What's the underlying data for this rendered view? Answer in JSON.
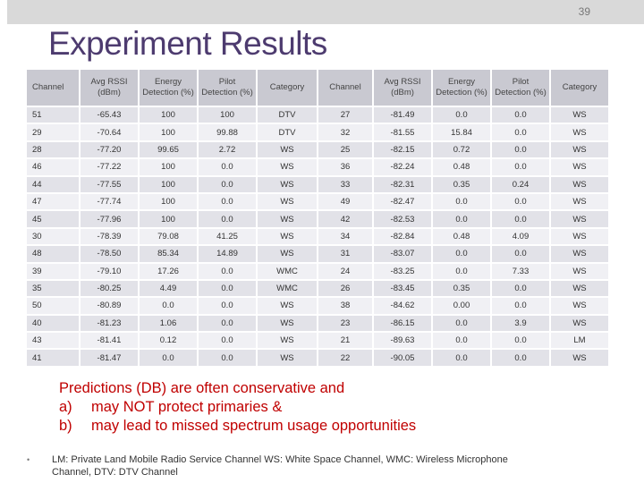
{
  "slide": {
    "page_number": "39",
    "title": "Experiment Results"
  },
  "table": {
    "headers": [
      "Channel",
      "Avg RSSI (dBm)",
      "Energy Detection (%)",
      "Pilot Detection (%)",
      "Category",
      "Channel",
      "Avg RSSI (dBm)",
      "Energy Detection (%)",
      "Pilot Detection (%)",
      "Category"
    ],
    "rows": [
      [
        "51",
        "-65.43",
        "100",
        "100",
        "DTV",
        "27",
        "-81.49",
        "0.0",
        "0.0",
        "WS"
      ],
      [
        "29",
        "-70.64",
        "100",
        "99.88",
        "DTV",
        "32",
        "-81.55",
        "15.84",
        "0.0",
        "WS"
      ],
      [
        "28",
        "-77.20",
        "99.65",
        "2.72",
        "WS",
        "25",
        "-82.15",
        "0.72",
        "0.0",
        "WS"
      ],
      [
        "46",
        "-77.22",
        "100",
        "0.0",
        "WS",
        "36",
        "-82.24",
        "0.48",
        "0.0",
        "WS"
      ],
      [
        "44",
        "-77.55",
        "100",
        "0.0",
        "WS",
        "33",
        "-82.31",
        "0.35",
        "0.24",
        "WS"
      ],
      [
        "47",
        "-77.74",
        "100",
        "0.0",
        "WS",
        "49",
        "-82.47",
        "0.0",
        "0.0",
        "WS"
      ],
      [
        "45",
        "-77.96",
        "100",
        "0.0",
        "WS",
        "42",
        "-82.53",
        "0.0",
        "0.0",
        "WS"
      ],
      [
        "30",
        "-78.39",
        "79.08",
        "41.25",
        "WS",
        "34",
        "-82.84",
        "0.48",
        "4.09",
        "WS"
      ],
      [
        "48",
        "-78.50",
        "85.34",
        "14.89",
        "WS",
        "31",
        "-83.07",
        "0.0",
        "0.0",
        "WS"
      ],
      [
        "39",
        "-79.10",
        "17.26",
        "0.0",
        "WMC",
        "24",
        "-83.25",
        "0.0",
        "7.33",
        "WS"
      ],
      [
        "35",
        "-80.25",
        "4.49",
        "0.0",
        "WMC",
        "26",
        "-83.45",
        "0.35",
        "0.0",
        "WS"
      ],
      [
        "50",
        "-80.89",
        "0.0",
        "0.0",
        "WS",
        "38",
        "-84.62",
        "0.00",
        "0.0",
        "WS"
      ],
      [
        "40",
        "-81.23",
        "1.06",
        "0.0",
        "WS",
        "23",
        "-86.15",
        "0.0",
        "3.9",
        "WS"
      ],
      [
        "43",
        "-81.41",
        "0.12",
        "0.0",
        "WS",
        "21",
        "-89.63",
        "0.0",
        "0.0",
        "LM"
      ],
      [
        "41",
        "-81.47",
        "0.0",
        "0.0",
        "WS",
        "22",
        "-90.05",
        "0.0",
        "0.0",
        "WS"
      ]
    ]
  },
  "callout": {
    "line1": "Predictions (DB) are often conservative and",
    "item_a_marker": "a)",
    "item_a_text": "may NOT protect primaries &",
    "item_b_marker": "b)",
    "item_b_text": "may lead to missed spectrum usage opportunities"
  },
  "footnote": {
    "bullet": "•",
    "text": "LM: Private Land Mobile Radio Service Channel WS: White Space Channel, WMC: Wireless Microphone Channel, DTV: DTV Channel"
  },
  "colors": {
    "title": "#4d3b6f",
    "callout": "#c00000",
    "header_bg": "#c9c9d1",
    "row_odd": "#e2e2e8",
    "row_even": "#f0f0f4",
    "top_bar": "#d9d9d9"
  }
}
